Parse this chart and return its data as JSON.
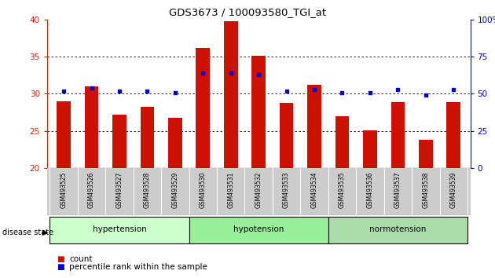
{
  "title": "GDS3673 / 100093580_TGI_at",
  "samples": [
    "GSM493525",
    "GSM493526",
    "GSM493527",
    "GSM493528",
    "GSM493529",
    "GSM493530",
    "GSM493531",
    "GSM493532",
    "GSM493533",
    "GSM493534",
    "GSM493535",
    "GSM493536",
    "GSM493537",
    "GSM493538",
    "GSM493539"
  ],
  "counts": [
    29.0,
    31.0,
    27.2,
    28.3,
    26.8,
    36.2,
    39.8,
    35.1,
    28.8,
    31.2,
    27.0,
    25.1,
    28.9,
    23.8,
    28.9
  ],
  "percentiles": [
    52,
    54,
    52,
    52,
    51,
    64,
    64,
    63,
    52,
    53,
    51,
    51,
    53,
    49,
    53
  ],
  "groups": [
    {
      "label": "hypertension",
      "start": 0,
      "end": 4
    },
    {
      "label": "hypotension",
      "start": 5,
      "end": 9
    },
    {
      "label": "normotension",
      "start": 10,
      "end": 14
    }
  ],
  "bar_color": "#cc1100",
  "dot_color": "#0000cc",
  "ylim_left": [
    20,
    40
  ],
  "ylim_right": [
    0,
    100
  ],
  "yticks_left": [
    20,
    25,
    30,
    35,
    40
  ],
  "yticks_right": [
    0,
    25,
    50,
    75,
    100
  ],
  "legend_count": "count",
  "legend_pct": "percentile rank within the sample",
  "disease_state_label": "disease state",
  "group_colors": [
    "#ccffcc",
    "#99ee99",
    "#aaddaa"
  ],
  "tick_bg": "#cccccc",
  "title_fontsize": 9.5,
  "bar_width": 0.5
}
